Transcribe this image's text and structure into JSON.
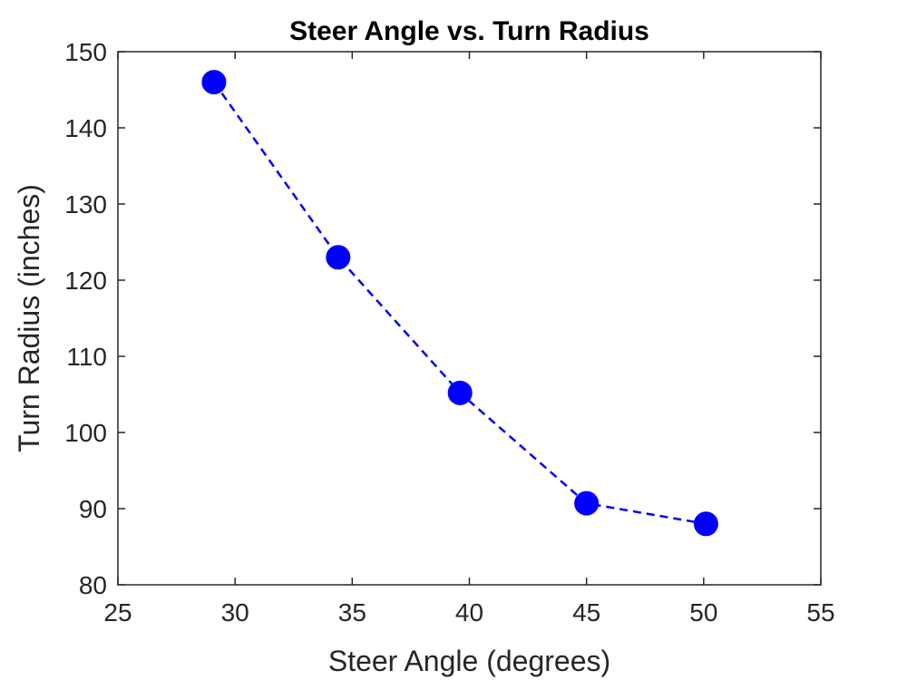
{
  "chart_data": {
    "type": "line",
    "title": "Steer Angle vs. Turn Radius",
    "xlabel": "Steer Angle (degrees)",
    "ylabel": "Turn Radius (inches)",
    "xlim": [
      25,
      55
    ],
    "ylim": [
      80,
      150
    ],
    "xticks": [
      25,
      30,
      35,
      40,
      45,
      50,
      55
    ],
    "yticks": [
      80,
      90,
      100,
      110,
      120,
      130,
      140,
      150
    ],
    "xtick_labels": [
      "25",
      "30",
      "35",
      "40",
      "45",
      "50",
      "55"
    ],
    "ytick_labels": [
      "80",
      "90",
      "100",
      "110",
      "120",
      "130",
      "140",
      "150"
    ],
    "grid": false,
    "box": true,
    "series": [
      {
        "x": [
          29.1,
          34.4,
          39.6,
          45.0,
          50.1
        ],
        "y": [
          146.0,
          123.0,
          105.2,
          90.7,
          88.0
        ],
        "color": "#0000ff",
        "line_style": "dashed",
        "marker": "filled-circle"
      }
    ]
  }
}
